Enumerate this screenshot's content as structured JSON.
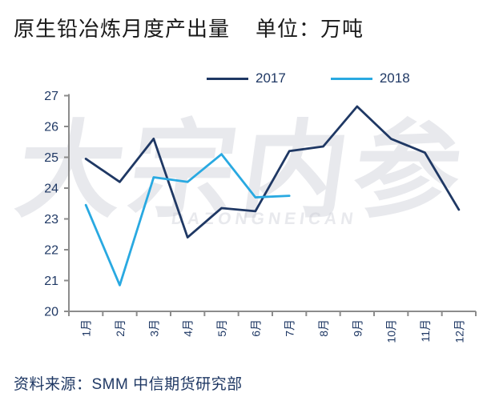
{
  "header": {
    "title": "原生铅冶炼月度产出量",
    "unit": "单位：万吨"
  },
  "chart_data": {
    "type": "line",
    "categories": [
      "1月",
      "2月",
      "3月",
      "4月",
      "5月",
      "6月",
      "7月",
      "8月",
      "9月",
      "10月",
      "11月",
      "12月"
    ],
    "series": [
      {
        "name": "2017",
        "color": "#1F3864",
        "values": [
          24.95,
          24.2,
          25.6,
          22.4,
          23.35,
          23.25,
          25.2,
          25.35,
          26.65,
          25.6,
          25.15,
          23.3
        ]
      },
      {
        "name": "2018",
        "color": "#29A9E1",
        "values": [
          23.45,
          20.85,
          24.35,
          24.2,
          25.1,
          23.7,
          23.75
        ]
      }
    ],
    "ylim": [
      20,
      27
    ],
    "ytick_step": 1,
    "grid": false,
    "legend_position": "top-center",
    "axis_color": "#8C8C8C",
    "tick_label_color": "#1F3864",
    "title": "原生铅冶炼月度产出量",
    "xlabel": "",
    "ylabel": "单位：万吨"
  },
  "watermark": {
    "text": "大宗内参",
    "subtext": "DAZONGNEICAN"
  },
  "source": {
    "label": "资料来源：SMM 中信期货研究部"
  }
}
